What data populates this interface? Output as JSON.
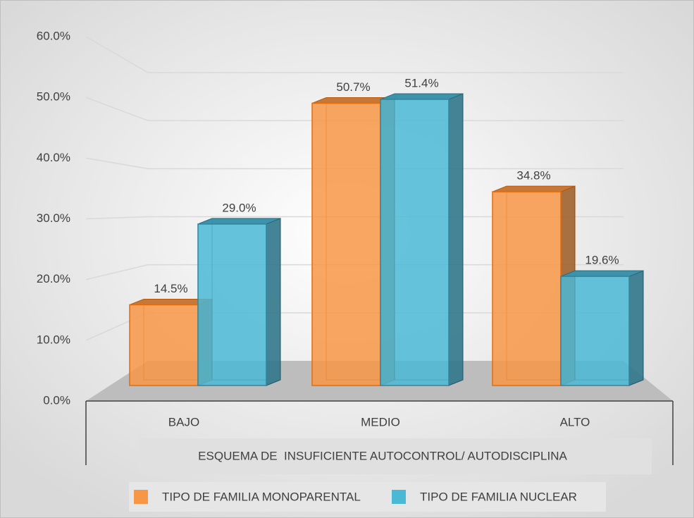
{
  "chart_data": {
    "type": "bar",
    "categories": [
      "BAJO",
      "MEDIO",
      "ALTO"
    ],
    "series": [
      {
        "name": "TIPO DE FAMILIA MONOPARENTAL",
        "color": "#f79646",
        "values": [
          14.5,
          50.7,
          34.8
        ],
        "value_labels": [
          "14.5%",
          "50.7%",
          "34.8%"
        ]
      },
      {
        "name": "TIPO DE FAMILIA NUCLEAR",
        "color": "#4bb8d6",
        "values": [
          29.0,
          51.4,
          19.6
        ],
        "value_labels": [
          "29.0%",
          "51.4%",
          "19.6%"
        ]
      }
    ],
    "x_label": "ESQUEMA DE  INSUFICIENTE AUTOCONTROL/ AUTODISCIPLINA",
    "ylim": [
      0,
      60
    ],
    "yticks": [
      {
        "value": 0,
        "label": "0.0%"
      },
      {
        "value": 10,
        "label": "10.0%"
      },
      {
        "value": 20,
        "label": "20.0%"
      },
      {
        "value": 30,
        "label": "30.0%"
      },
      {
        "value": 40,
        "label": "40.0%"
      },
      {
        "value": 50,
        "label": "50.0%"
      },
      {
        "value": 60,
        "label": "60.0%"
      }
    ],
    "grid": true,
    "legend": "bottom"
  }
}
